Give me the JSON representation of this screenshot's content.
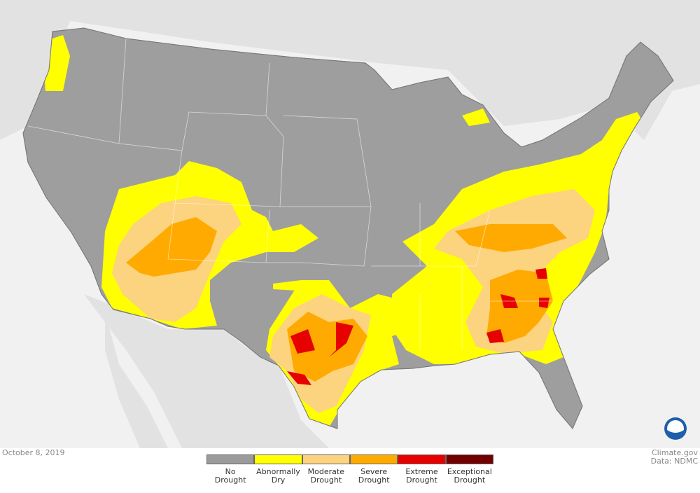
{
  "date": "October 8, 2019",
  "credits": {
    "source": "Climate.gov",
    "data": "Data: NDMC"
  },
  "legend": [
    {
      "color": "#9b9b9b",
      "label": [
        "No",
        "Drought"
      ]
    },
    {
      "color": "#ffff00",
      "label": [
        "Abnormally",
        "Dry"
      ]
    },
    {
      "color": "#fcd37f",
      "label": [
        "Moderate",
        "Drought"
      ]
    },
    {
      "color": "#ffaa00",
      "label": [
        "Severe",
        "Drought"
      ]
    },
    {
      "color": "#e60000",
      "label": [
        "Extreme",
        "Drought"
      ]
    },
    {
      "color": "#730000",
      "label": [
        "Exceptional",
        "Drought"
      ]
    }
  ]
}
